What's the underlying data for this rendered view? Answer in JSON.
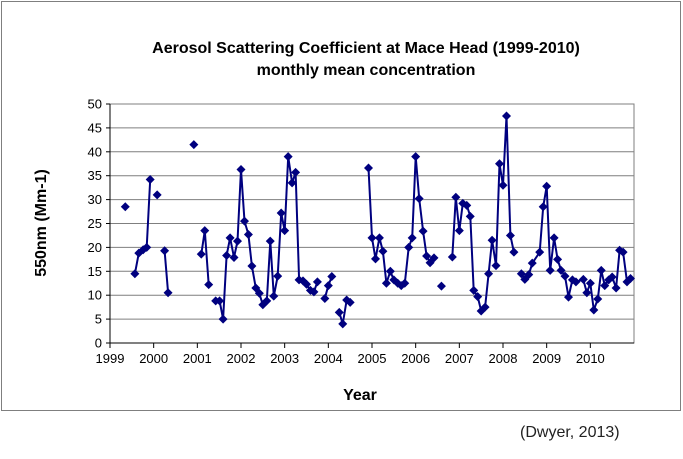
{
  "chart_data": {
    "type": "line",
    "title": "Aerosol Scattering Coefficient at Mace Head (1999-2010)",
    "subtitle": "monthly mean concentration",
    "xlabel": "Year",
    "ylabel": "550nm (Mm-1)",
    "xlim": [
      1999,
      2011
    ],
    "ylim": [
      0,
      50
    ],
    "x_ticks": [
      "1999",
      "2000",
      "2001",
      "2002",
      "2003",
      "2004",
      "2005",
      "2006",
      "2007",
      "2008",
      "2009",
      "2010"
    ],
    "y_ticks": [
      "0",
      "5",
      "10",
      "15",
      "20",
      "25",
      "30",
      "35",
      "40",
      "45",
      "50"
    ],
    "grid": "horizontal",
    "legend": "none",
    "color": "#00007f",
    "marker": "diamond",
    "segments": [
      [
        [
          1999.35,
          28.5
        ]
      ],
      [
        [
          1999.57,
          14.5
        ],
        [
          1999.66,
          18.8
        ],
        [
          1999.76,
          19.5
        ],
        [
          1999.84,
          20.0
        ],
        [
          1999.92,
          34.2
        ]
      ],
      [
        [
          2000.08,
          31.0
        ]
      ],
      [
        [
          2000.25,
          19.3
        ],
        [
          2000.33,
          10.5
        ]
      ],
      [
        [
          2000.92,
          41.5
        ]
      ],
      [
        [
          2001.09,
          18.6
        ],
        [
          2001.17,
          23.5
        ],
        [
          2001.26,
          12.2
        ]
      ],
      [
        [
          2001.42,
          8.8
        ],
        [
          2001.51,
          8.8
        ],
        [
          2001.59,
          5.0
        ],
        [
          2001.67,
          18.3
        ],
        [
          2001.75,
          22.0
        ],
        [
          2001.84,
          17.9
        ],
        [
          2001.92,
          21.3
        ],
        [
          2002.0,
          36.3
        ],
        [
          2002.08,
          25.5
        ],
        [
          2002.17,
          22.7
        ],
        [
          2002.25,
          16.1
        ],
        [
          2002.34,
          11.5
        ],
        [
          2002.42,
          10.4
        ],
        [
          2002.5,
          8.0
        ],
        [
          2002.59,
          8.8
        ],
        [
          2002.67,
          21.3
        ],
        [
          2002.75,
          9.8
        ],
        [
          2002.84,
          14.0
        ],
        [
          2002.92,
          27.2
        ],
        [
          2003.0,
          23.5
        ],
        [
          2003.08,
          39.0
        ],
        [
          2003.17,
          33.5
        ],
        [
          2003.25,
          35.7
        ],
        [
          2003.33,
          13.2
        ],
        [
          2003.42,
          13.0
        ],
        [
          2003.5,
          12.3
        ],
        [
          2003.59,
          11.0
        ],
        [
          2003.67,
          10.7
        ],
        [
          2003.75,
          12.8
        ]
      ],
      [
        [
          2003.92,
          9.3
        ],
        [
          2004.0,
          12.0
        ],
        [
          2004.08,
          13.9
        ]
      ],
      [
        [
          2004.25,
          6.4
        ],
        [
          2004.33,
          4.0
        ],
        [
          2004.42,
          9.0
        ],
        [
          2004.5,
          8.5
        ]
      ],
      [
        [
          2004.92,
          36.6
        ],
        [
          2005.0,
          22.0
        ],
        [
          2005.08,
          17.6
        ],
        [
          2005.17,
          22.0
        ],
        [
          2005.25,
          19.2
        ],
        [
          2005.33,
          12.5
        ],
        [
          2005.42,
          15.0
        ],
        [
          2005.5,
          13.2
        ],
        [
          2005.59,
          12.5
        ],
        [
          2005.67,
          12.0
        ],
        [
          2005.75,
          12.5
        ],
        [
          2005.84,
          20.0
        ],
        [
          2005.92,
          22.0
        ],
        [
          2006.0,
          39.0
        ],
        [
          2006.08,
          30.2
        ],
        [
          2006.17,
          23.4
        ],
        [
          2006.25,
          18.2
        ],
        [
          2006.33,
          16.8
        ],
        [
          2006.42,
          17.8
        ]
      ],
      [
        [
          2006.59,
          11.9
        ]
      ],
      [
        [
          2006.84,
          18.0
        ],
        [
          2006.92,
          30.5
        ],
        [
          2007.0,
          23.5
        ],
        [
          2007.08,
          29.2
        ],
        [
          2007.17,
          28.8
        ],
        [
          2007.25,
          26.5
        ],
        [
          2007.33,
          11.0
        ],
        [
          2007.42,
          9.7
        ],
        [
          2007.5,
          6.7
        ],
        [
          2007.59,
          7.5
        ],
        [
          2007.67,
          14.5
        ],
        [
          2007.75,
          21.5
        ],
        [
          2007.84,
          16.2
        ],
        [
          2007.92,
          37.5
        ],
        [
          2008.0,
          33.0
        ],
        [
          2008.08,
          47.5
        ],
        [
          2008.17,
          22.5
        ],
        [
          2008.25,
          19.0
        ]
      ],
      [
        [
          2008.42,
          14.5
        ],
        [
          2008.5,
          13.3
        ],
        [
          2008.59,
          14.3
        ],
        [
          2008.67,
          16.7
        ],
        [
          2008.84,
          19.0
        ],
        [
          2008.92,
          28.5
        ],
        [
          2009.0,
          32.8
        ],
        [
          2009.08,
          15.2
        ],
        [
          2009.17,
          22.0
        ],
        [
          2009.25,
          17.5
        ],
        [
          2009.33,
          15.2
        ],
        [
          2009.42,
          14.0
        ],
        [
          2009.5,
          9.6
        ],
        [
          2009.59,
          13.2
        ],
        [
          2009.67,
          12.8
        ],
        [
          2009.84,
          13.3
        ],
        [
          2009.92,
          10.5
        ],
        [
          2010.0,
          12.5
        ],
        [
          2010.08,
          6.9
        ],
        [
          2010.17,
          9.2
        ],
        [
          2010.25,
          15.2
        ],
        [
          2010.33,
          12.0
        ],
        [
          2010.42,
          13.2
        ],
        [
          2010.5,
          13.8
        ],
        [
          2010.59,
          11.5
        ],
        [
          2010.67,
          19.4
        ],
        [
          2010.75,
          19.0
        ],
        [
          2010.84,
          12.8
        ],
        [
          2010.92,
          13.5
        ]
      ]
    ]
  },
  "source_note": "(Dwyer, 2013)"
}
